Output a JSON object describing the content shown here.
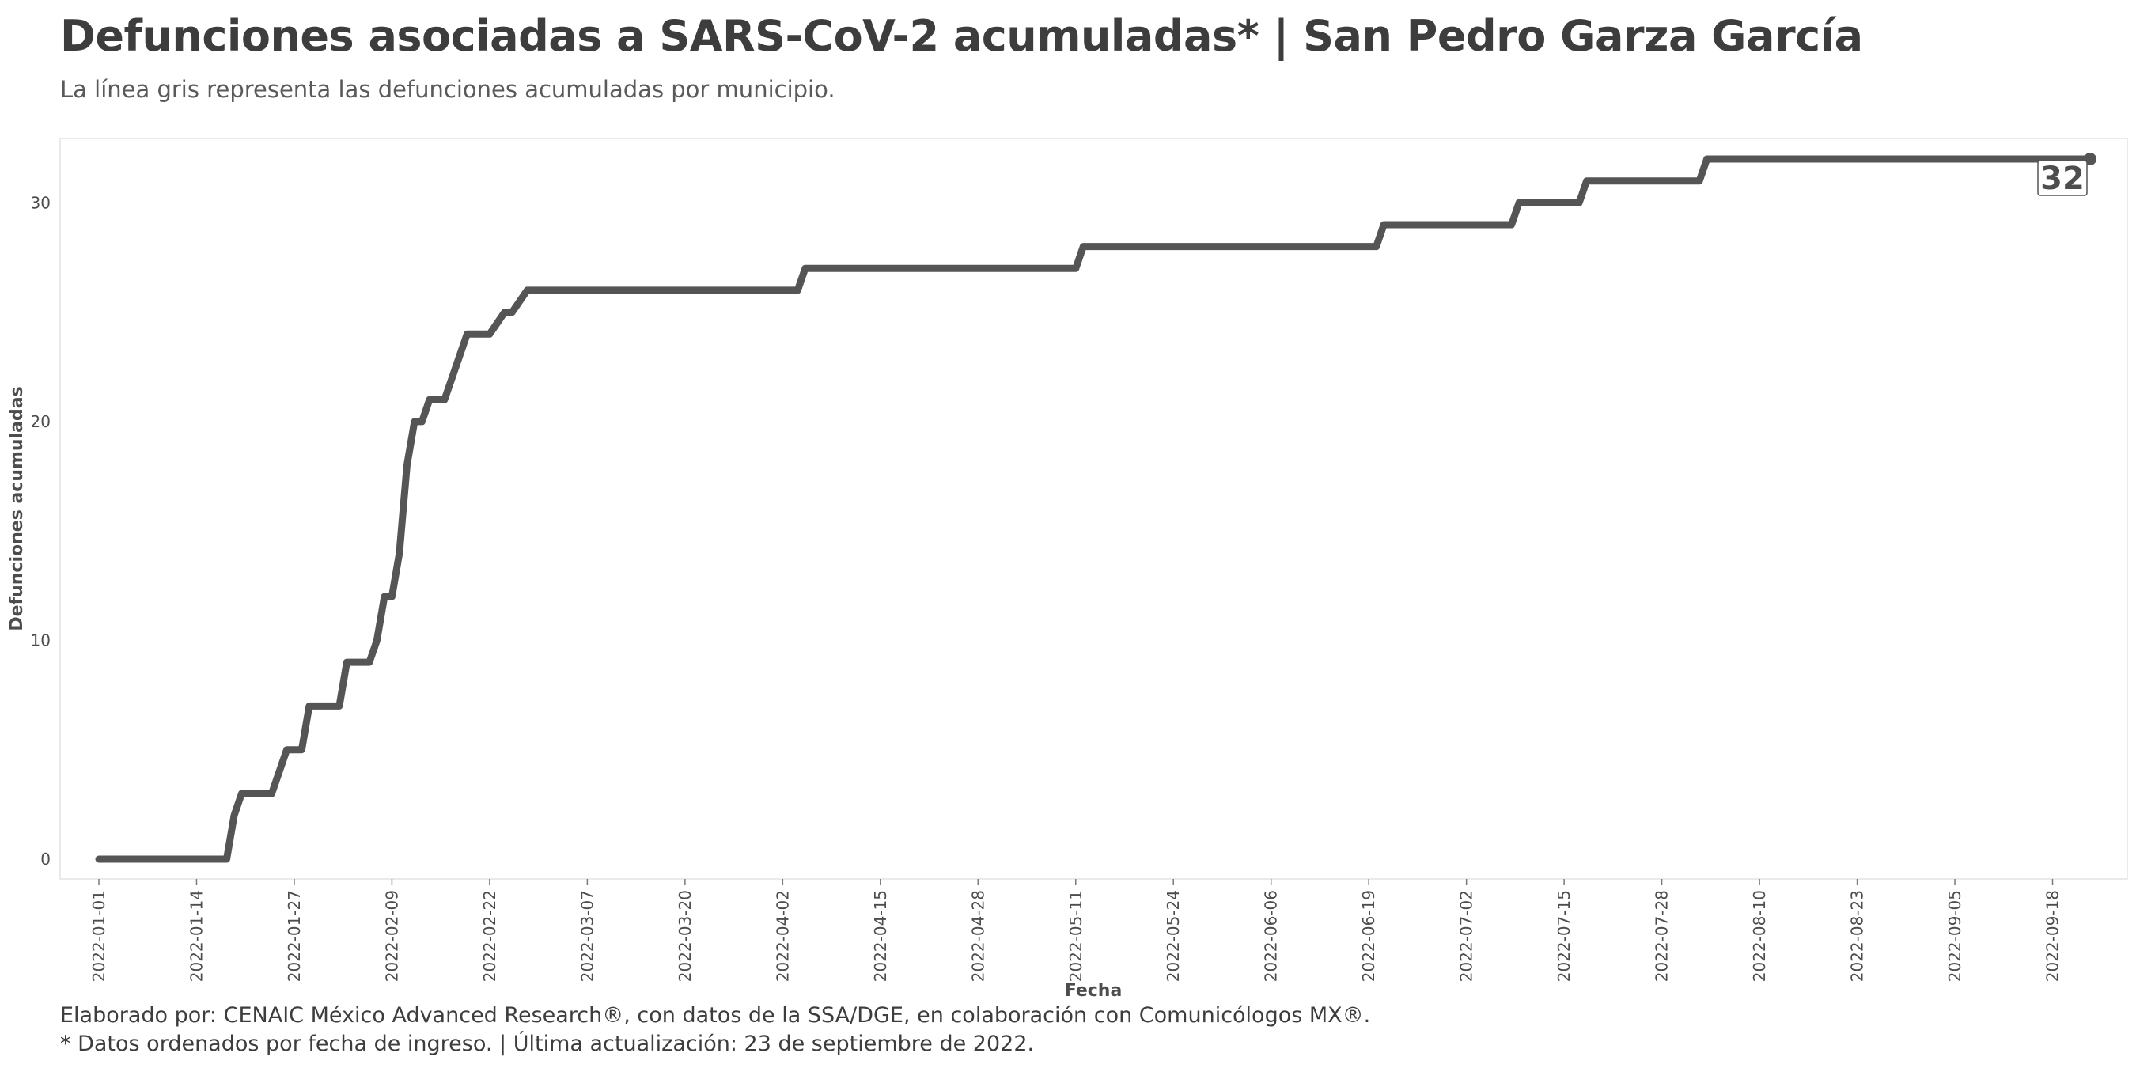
{
  "header": {
    "title": "Defunciones asociadas a SARS-CoV-2 acumuladas* | San Pedro Garza García",
    "subtitle": "La línea gris representa las defunciones acumuladas por municipio."
  },
  "footer": {
    "line1": "Elaborado por: CENAIC México Advanced Research®, con datos de la SSA/DGE, en colaboración con Comunicólogos MX®.",
    "line2": "* Datos ordenados por fecha de ingreso. | Última actualización: 23 de septiembre de 2022."
  },
  "chart_data": {
    "type": "line",
    "title": "Defunciones asociadas a SARS-CoV-2 acumuladas* | San Pedro Garza García",
    "subtitle": "La línea gris representa las defunciones acumuladas por municipio.",
    "xlabel": "Fecha",
    "ylabel": "Defunciones acumuladas",
    "xlim": [
      "2022-01-01",
      "2022-09-23"
    ],
    "ylim": [
      -1.5,
      32.5
    ],
    "y_ticks": [
      0,
      10,
      20,
      30
    ],
    "x_ticks": [
      "2022-01-01",
      "2022-01-14",
      "2022-01-27",
      "2022-02-09",
      "2022-02-22",
      "2022-03-07",
      "2022-03-20",
      "2022-04-02",
      "2022-04-15",
      "2022-04-28",
      "2022-05-11",
      "2022-05-24",
      "2022-06-06",
      "2022-06-19",
      "2022-07-02",
      "2022-07-15",
      "2022-07-28",
      "2022-08-10",
      "2022-08-23",
      "2022-09-05",
      "2022-09-18"
    ],
    "grid": false,
    "line_color": "#555555",
    "end_label": "32",
    "series": [
      {
        "x": [
          "2022-01-01",
          "2022-01-18",
          "2022-01-19",
          "2022-01-20",
          "2022-01-24",
          "2022-01-25",
          "2022-01-26",
          "2022-01-28",
          "2022-01-29",
          "2022-02-02",
          "2022-02-03",
          "2022-02-06",
          "2022-02-07",
          "2022-02-08",
          "2022-02-09",
          "2022-02-10",
          "2022-02-11",
          "2022-02-12",
          "2022-02-13",
          "2022-02-14",
          "2022-02-15",
          "2022-02-16",
          "2022-02-19",
          "2022-02-22",
          "2022-02-24",
          "2022-02-25",
          "2022-02-27",
          "2022-02-28",
          "2022-04-04",
          "2022-04-05",
          "2022-05-11",
          "2022-05-12",
          "2022-06-20",
          "2022-06-21",
          "2022-07-08",
          "2022-07-09",
          "2022-07-17",
          "2022-07-18",
          "2022-08-02",
          "2022-08-03",
          "2022-09-23"
        ],
        "y": [
          0,
          0,
          2,
          3,
          3,
          4,
          5,
          5,
          7,
          7,
          9,
          9,
          10,
          12,
          12,
          14,
          18,
          20,
          20,
          21,
          21,
          21,
          24,
          24,
          25,
          25,
          26,
          26,
          26,
          27,
          27,
          28,
          28,
          29,
          29,
          30,
          30,
          31,
          31,
          32,
          32
        ]
      }
    ]
  }
}
